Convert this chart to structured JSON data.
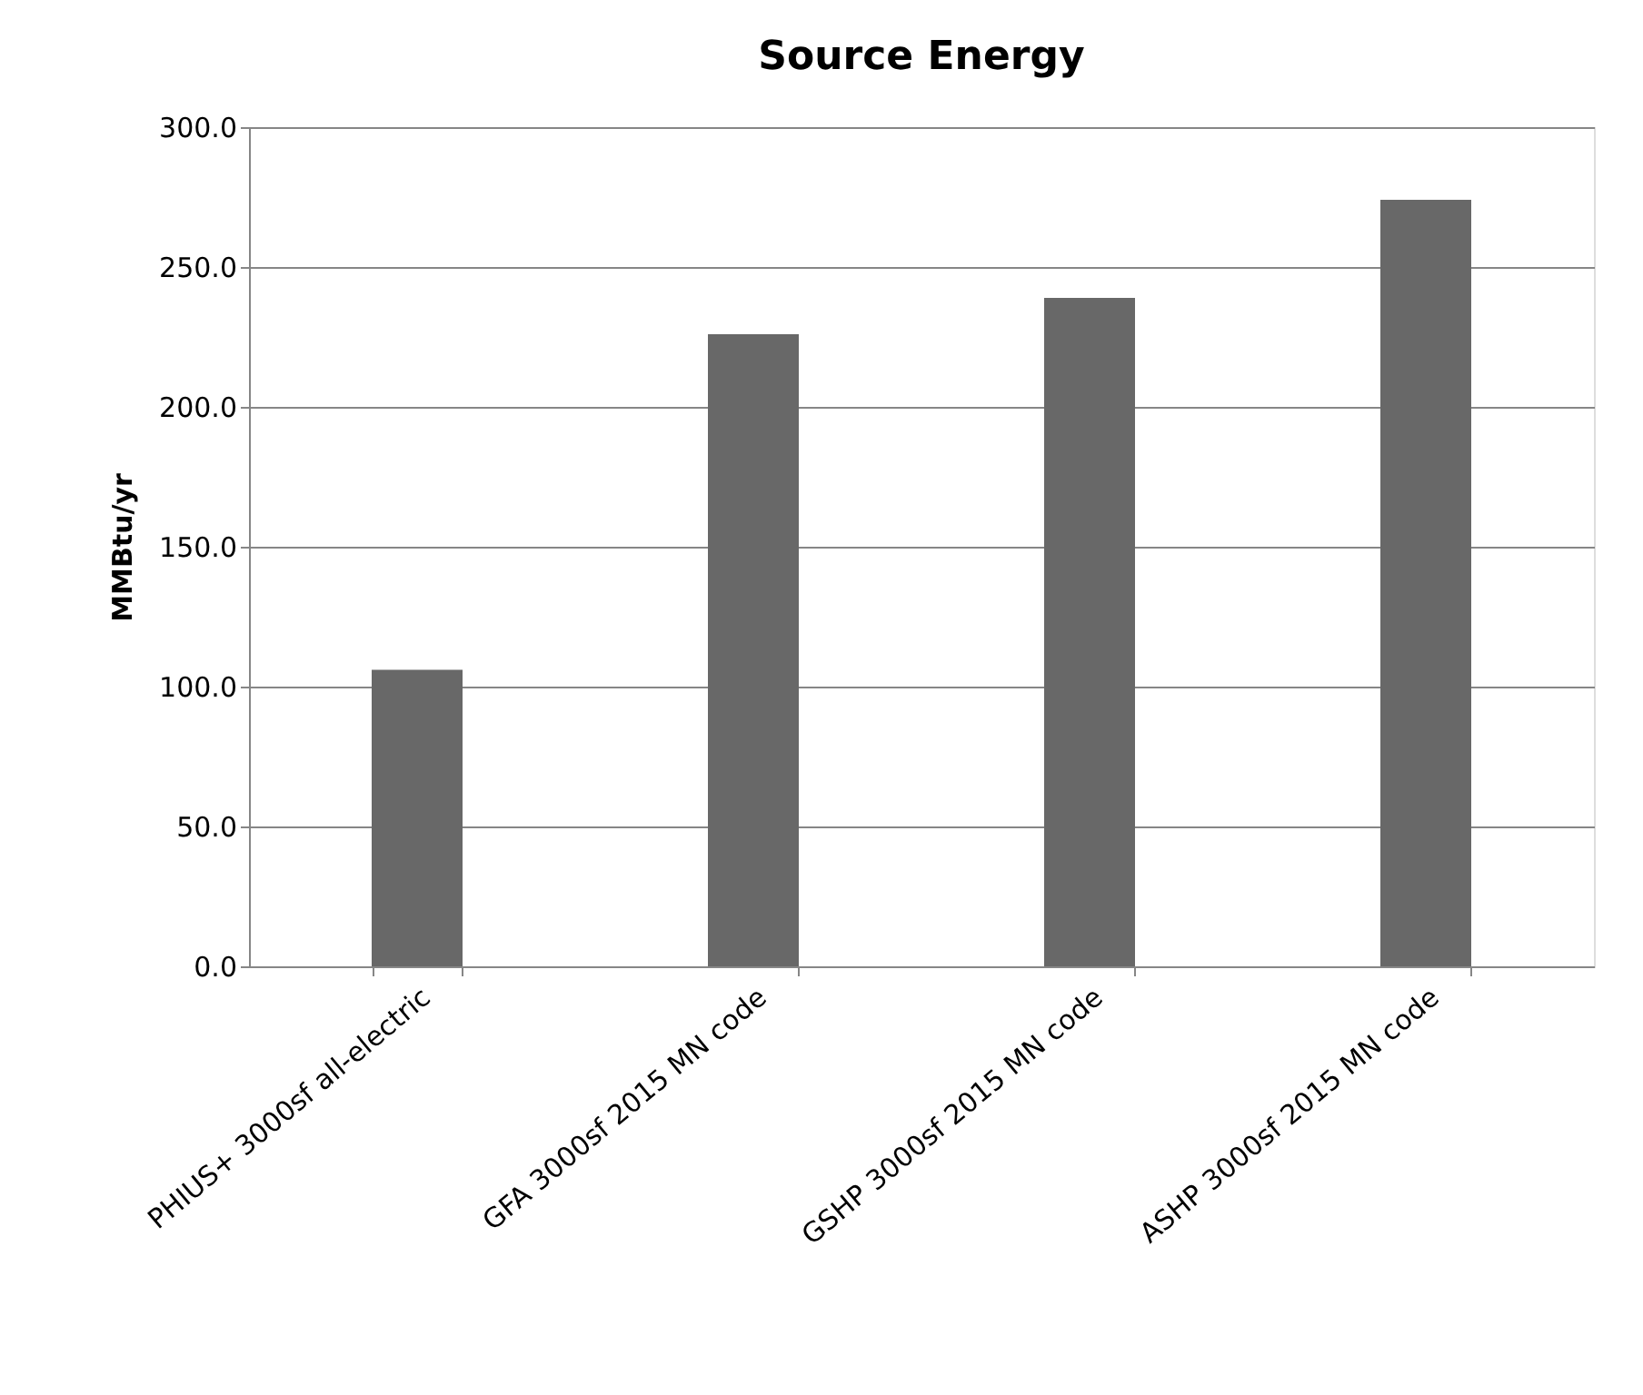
{
  "chart_data": {
    "type": "bar",
    "title": "Source Energy",
    "ylabel": "MMBtu/yr",
    "categories": [
      "PHIUS+ 3000sf all-electric",
      "GFA 3000sf 2015 MN code",
      "GSHP 3000sf 2015 MN code",
      "ASHP 3000sf 2015 MN code"
    ],
    "values": [
      106,
      226,
      239,
      274
    ],
    "color": "#686868",
    "ylim": [
      0,
      300
    ],
    "yticks": [
      {
        "value": 0,
        "label": "0.0"
      },
      {
        "value": 50,
        "label": "50.0"
      },
      {
        "value": 100,
        "label": "100.0"
      },
      {
        "value": 150,
        "label": "150.0"
      },
      {
        "value": 200,
        "label": "200.0"
      },
      {
        "value": 250,
        "label": "250.0"
      },
      {
        "value": 300,
        "label": "300.0"
      }
    ],
    "grid": "y"
  }
}
